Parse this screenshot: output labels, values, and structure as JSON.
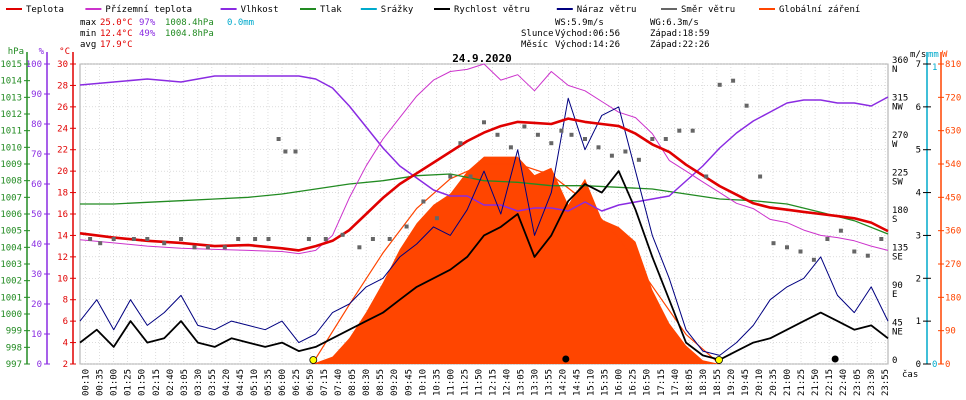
{
  "legend": [
    {
      "label": "Teplota",
      "color": "#e00000"
    },
    {
      "label": "Přízemní teplota",
      "color": "#cc33cc"
    },
    {
      "label": "Vlhkost",
      "color": "#8a2be2"
    },
    {
      "label": "Tlak",
      "color": "#228b22"
    },
    {
      "label": "Srážky",
      "color": "#00aacc"
    },
    {
      "label": "Rychlost větru",
      "color": "#000000"
    },
    {
      "label": "Náraz větru",
      "color": "#000080"
    },
    {
      "label": "Směr větru",
      "color": "#666666"
    },
    {
      "label": "Globální záření",
      "color": "#ff4500"
    }
  ],
  "stats": {
    "max_label": "max",
    "max_temp": "25.0°C",
    "max_hum": "97%",
    "max_press": "1008.4hPa",
    "rain": "0.0mm",
    "min_label": "min",
    "min_temp": "12.4°C",
    "min_hum": "49%",
    "min_press": "1004.8hPa",
    "avg_label": "avg",
    "avg_temp": "17.9°C"
  },
  "wind_info": {
    "ws": "WS:5.9m/s",
    "wg": "WG:6.3m/s"
  },
  "sun_info": {
    "sun_label": "Slunce",
    "sun_rise": "Východ:06:56",
    "sun_set": "Západ:18:59",
    "moon_label": "Měsíc",
    "moon_rise": "Východ:14:26",
    "moon_set": "Západ:22:26"
  },
  "date": "24.9.2020",
  "time_unit": "čas",
  "colors": {
    "temp": "#e00000",
    "dew": "#cc33cc",
    "hum": "#8a2be2",
    "press": "#228b22",
    "rain": "#00aacc",
    "wind": "#000000",
    "gust": "#000080",
    "dir": "#666666",
    "rad": "#ff4500",
    "grid": "#a9a9a9"
  },
  "chart_data": {
    "type": "line",
    "x_labels": [
      "00:10",
      "00:35",
      "01:00",
      "01:25",
      "01:50",
      "02:15",
      "02:40",
      "03:05",
      "03:30",
      "03:55",
      "04:20",
      "04:45",
      "05:10",
      "05:35",
      "06:00",
      "06:25",
      "06:50",
      "07:15",
      "07:40",
      "08:05",
      "08:30",
      "08:55",
      "09:20",
      "09:45",
      "10:10",
      "10:35",
      "11:00",
      "11:25",
      "11:50",
      "12:15",
      "12:40",
      "13:05",
      "13:30",
      "13:55",
      "14:20",
      "14:45",
      "15:10",
      "15:35",
      "16:00",
      "16:25",
      "16:50",
      "17:15",
      "17:40",
      "18:05",
      "18:30",
      "18:55",
      "19:20",
      "19:45",
      "20:10",
      "20:35",
      "21:00",
      "21:25",
      "21:50",
      "22:15",
      "22:40",
      "23:05",
      "23:30",
      "23:55"
    ],
    "axes": {
      "hpa": {
        "unit": "hPa",
        "min": 997,
        "max": 1015,
        "ticks": [
          997,
          998,
          999,
          1000,
          1001,
          1002,
          1003,
          1004,
          1005,
          1006,
          1007,
          1008,
          1009,
          1010,
          1011,
          1012,
          1013,
          1014,
          1015
        ]
      },
      "percent": {
        "unit": "%",
        "min": 0,
        "max": 100,
        "ticks": [
          0,
          10,
          20,
          30,
          40,
          50,
          60,
          70,
          80,
          90,
          100
        ]
      },
      "celsius": {
        "unit": "°C",
        "min": 2,
        "max": 30,
        "ticks": [
          2,
          4,
          6,
          8,
          10,
          12,
          14,
          16,
          18,
          20,
          22,
          24,
          26,
          28,
          30
        ]
      },
      "direction": {
        "min": 0,
        "max": 360,
        "ticks": [
          {
            "v": 360,
            "t": "360",
            "c": "N"
          },
          {
            "v": 315,
            "t": "315",
            "c": "NW"
          },
          {
            "v": 270,
            "t": "270",
            "c": "W"
          },
          {
            "v": 225,
            "t": "225",
            "c": "SW"
          },
          {
            "v": 180,
            "t": "180",
            "c": "S"
          },
          {
            "v": 135,
            "t": "135",
            "c": "SE"
          },
          {
            "v": 90,
            "t": "90",
            "c": "E"
          },
          {
            "v": 45,
            "t": "45",
            "c": "NE"
          },
          {
            "v": 0,
            "t": "0",
            "c": ""
          }
        ]
      },
      "ms": {
        "unit": "m/s",
        "min": 0,
        "max": 7,
        "ticks": [
          0,
          1,
          2,
          3,
          4,
          5,
          6,
          7
        ]
      },
      "mm": {
        "unit": "mm",
        "min": 0,
        "max": 1,
        "ticks": [
          0,
          1
        ]
      },
      "wm2": {
        "unit": "W",
        "min": 0,
        "max": 810,
        "ticks": [
          0,
          90,
          180,
          270,
          360,
          450,
          540,
          630,
          720,
          810
        ]
      }
    },
    "series": [
      {
        "key": "temp",
        "name": "Teplota",
        "x_hours": [
          0,
          1,
          2,
          3,
          4,
          5,
          6,
          6.5,
          7,
          7.5,
          8,
          8.5,
          9,
          9.5,
          10,
          10.5,
          11,
          11.5,
          12,
          12.5,
          13,
          13.5,
          14,
          14.5,
          15,
          15.5,
          16,
          16.5,
          17,
          17.5,
          18,
          18.5,
          19,
          19.5,
          20,
          20.5,
          21,
          21.5,
          22,
          22.5,
          23,
          23.5,
          24
        ],
        "values": [
          14.2,
          13.8,
          13.5,
          13.3,
          13.0,
          13.1,
          12.8,
          12.6,
          13.0,
          13.5,
          14.5,
          16.0,
          17.5,
          18.8,
          19.8,
          20.8,
          21.8,
          22.8,
          23.6,
          24.2,
          24.6,
          24.5,
          24.4,
          24.9,
          24.6,
          24.4,
          24.2,
          23.5,
          22.5,
          21.8,
          20.6,
          19.6,
          18.6,
          17.8,
          17.0,
          16.6,
          16.4,
          16.2,
          16.0,
          15.8,
          15.6,
          15.2,
          14.4
        ]
      },
      {
        "key": "dew",
        "name": "Přízemní teplota",
        "x_hours": [
          0,
          1,
          2,
          3,
          4,
          5,
          6,
          6.5,
          7,
          7.5,
          8,
          8.5,
          9,
          9.5,
          10,
          10.5,
          11,
          11.5,
          12,
          12.5,
          13,
          13.5,
          14,
          14.5,
          15,
          15.5,
          16,
          16.5,
          17,
          17.5,
          18,
          18.5,
          19,
          19.5,
          20,
          20.5,
          21,
          21.5,
          22,
          22.5,
          23,
          23.5,
          24
        ],
        "values": [
          13.6,
          13.3,
          13.0,
          12.8,
          12.7,
          12.6,
          12.5,
          12.3,
          12.6,
          14.0,
          17.5,
          20.5,
          23.0,
          25.0,
          27.0,
          28.5,
          29.3,
          29.5,
          30.0,
          28.5,
          29.0,
          27.5,
          29.3,
          28.0,
          27.5,
          26.5,
          25.5,
          25.0,
          23.5,
          21.0,
          20.0,
          19.0,
          18.0,
          17.0,
          16.5,
          15.5,
          15.2,
          14.5,
          14.0,
          13.8,
          13.5,
          13.0,
          12.6
        ]
      },
      {
        "key": "hum",
        "name": "Vlhkost",
        "unit": "%",
        "x_hours": [
          0,
          1,
          2,
          3,
          4,
          5,
          6,
          6.5,
          7,
          7.5,
          8,
          8.5,
          9,
          9.5,
          10,
          10.5,
          11,
          11.5,
          12,
          12.5,
          13,
          13.5,
          14,
          14.5,
          15,
          15.5,
          16,
          16.5,
          17,
          17.5,
          18,
          18.5,
          19,
          19.5,
          20,
          20.5,
          21,
          21.5,
          22,
          22.5,
          23,
          23.5,
          24
        ],
        "values": [
          93,
          94,
          95,
          94,
          96,
          96,
          96,
          96,
          95,
          92,
          86,
          79,
          72,
          66,
          62,
          58,
          56,
          56,
          53,
          53,
          51,
          52,
          52,
          51,
          54,
          51,
          53,
          54,
          55,
          56,
          61,
          66,
          72,
          77,
          81,
          84,
          87,
          88,
          88,
          87,
          87,
          86,
          89
        ]
      },
      {
        "key": "press",
        "name": "Tlak",
        "unit": "hPa",
        "x_hours": [
          0,
          1,
          2,
          3,
          4,
          5,
          6,
          7,
          8,
          9,
          10,
          11,
          12,
          13,
          14,
          15,
          16,
          17,
          18,
          19,
          20,
          21,
          22,
          23,
          24
        ],
        "values": [
          1006.6,
          1006.6,
          1006.7,
          1006.8,
          1006.9,
          1007.0,
          1007.2,
          1007.5,
          1007.8,
          1008.0,
          1008.3,
          1008.4,
          1008.0,
          1007.9,
          1007.7,
          1007.7,
          1007.6,
          1007.5,
          1007.2,
          1006.9,
          1006.8,
          1006.6,
          1006.1,
          1005.6,
          1004.8
        ]
      },
      {
        "key": "wind",
        "name": "Rychlost větru",
        "unit": "m/s",
        "x_hours": [
          0,
          0.5,
          1,
          1.5,
          2,
          2.5,
          3,
          3.5,
          4,
          4.5,
          5,
          5.5,
          6,
          6.5,
          7,
          7.5,
          8,
          8.5,
          9,
          9.5,
          10,
          10.5,
          11,
          11.5,
          12,
          12.5,
          13,
          13.5,
          14,
          14.5,
          15,
          15.5,
          16,
          16.5,
          17,
          17.5,
          18,
          18.5,
          19,
          19.5,
          20,
          20.5,
          21,
          21.5,
          22,
          22.5,
          23,
          23.5,
          24
        ],
        "values": [
          0.5,
          0.8,
          0.4,
          1.0,
          0.5,
          0.6,
          1.0,
          0.5,
          0.4,
          0.6,
          0.5,
          0.4,
          0.5,
          0.3,
          0.4,
          0.6,
          0.8,
          1.0,
          1.2,
          1.5,
          1.8,
          2.0,
          2.2,
          2.5,
          3.0,
          3.2,
          3.5,
          2.5,
          3.0,
          3.8,
          4.2,
          4.0,
          4.5,
          3.6,
          2.5,
          1.5,
          0.5,
          0.2,
          0.1,
          0.3,
          0.5,
          0.6,
          0.8,
          1.0,
          1.2,
          1.0,
          0.8,
          0.9,
          0.6
        ]
      },
      {
        "key": "gust",
        "name": "Náraz větru",
        "unit": "m/s",
        "x_hours": [
          0,
          0.5,
          1,
          1.5,
          2,
          2.5,
          3,
          3.5,
          4,
          4.5,
          5,
          5.5,
          6,
          6.5,
          7,
          7.5,
          8,
          8.5,
          9,
          9.5,
          10,
          10.5,
          11,
          11.5,
          12,
          12.5,
          13,
          13.5,
          14,
          14.5,
          15,
          15.5,
          16,
          16.5,
          17,
          17.5,
          18,
          18.5,
          19,
          19.5,
          20,
          20.5,
          21,
          21.5,
          22,
          22.5,
          23,
          23.5,
          24
        ],
        "values": [
          1.0,
          1.5,
          0.8,
          1.5,
          0.9,
          1.2,
          1.6,
          0.9,
          0.8,
          1.0,
          0.9,
          0.8,
          1.0,
          0.5,
          0.7,
          1.2,
          1.4,
          1.8,
          2.0,
          2.5,
          2.8,
          3.2,
          3.0,
          3.6,
          4.5,
          3.5,
          5.0,
          3.0,
          4.0,
          6.2,
          5.0,
          5.8,
          6.0,
          4.5,
          3.0,
          2.0,
          0.8,
          0.3,
          0.2,
          0.5,
          0.9,
          1.5,
          1.8,
          2.0,
          2.5,
          1.6,
          1.2,
          1.8,
          1.0
        ]
      },
      {
        "key": "rad",
        "name": "Globální záření",
        "unit": "W",
        "x_hours": [
          6.9,
          7.5,
          8,
          8.5,
          9,
          9.5,
          10,
          10.5,
          11,
          11.5,
          12,
          12.5,
          13,
          13.5,
          14,
          14.5,
          15,
          15.5,
          16,
          16.5,
          17,
          17.5,
          18,
          18.5,
          19
        ],
        "values": [
          0,
          20,
          70,
          140,
          220,
          310,
          380,
          430,
          460,
          520,
          560,
          560,
          560,
          510,
          530,
          430,
          500,
          390,
          370,
          330,
          200,
          110,
          50,
          10,
          0
        ]
      },
      {
        "key": "clear_sky",
        "name": "",
        "unit": "W",
        "x_hours": [
          6.9,
          8,
          9,
          10,
          11,
          12,
          13,
          14,
          15,
          16,
          17,
          18,
          19
        ],
        "values": [
          0,
          160,
          300,
          420,
          500,
          540,
          540,
          510,
          440,
          340,
          210,
          80,
          0
        ]
      },
      {
        "key": "dir",
        "name": "Směr větru",
        "unit": "°",
        "x_hours": [
          0.3,
          0.6,
          1.0,
          1.6,
          2.0,
          2.5,
          3.0,
          3.4,
          3.8,
          4.3,
          4.7,
          5.2,
          5.6,
          5.9,
          6.1,
          6.4,
          6.8,
          7.3,
          7.8,
          8.3,
          8.7,
          9.2,
          9.7,
          10.2,
          10.6,
          11.0,
          11.3,
          11.6,
          12.0,
          12.4,
          12.8,
          13.2,
          13.6,
          14.0,
          14.3,
          14.6,
          15.0,
          15.4,
          15.8,
          16.2,
          16.6,
          17.0,
          17.4,
          17.8,
          18.2,
          18.6,
          19.0,
          19.4,
          19.8,
          20.2,
          20.6,
          21.0,
          21.4,
          21.8,
          22.2,
          22.6,
          23.0,
          23.4,
          23.8
        ],
        "values": [
          150,
          145,
          150,
          150,
          150,
          145,
          150,
          140,
          140,
          140,
          150,
          150,
          150,
          270,
          255,
          255,
          150,
          150,
          155,
          140,
          150,
          150,
          165,
          195,
          175,
          225,
          265,
          225,
          290,
          275,
          260,
          285,
          275,
          265,
          280,
          275,
          270,
          260,
          250,
          255,
          245,
          270,
          270,
          280,
          280,
          225,
          335,
          340,
          310,
          225,
          145,
          140,
          135,
          125,
          150,
          160,
          135,
          130,
          150
        ]
      }
    ]
  }
}
